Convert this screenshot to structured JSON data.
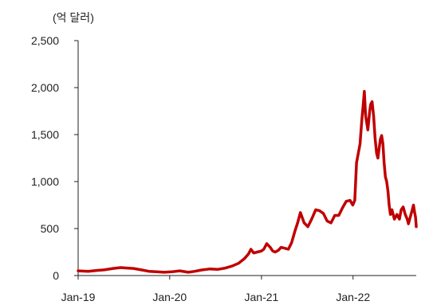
{
  "chart_data": {
    "type": "line",
    "unit_label": "(억 달러)",
    "y_ticks": [
      0,
      500,
      1000,
      1500,
      2000,
      2500
    ],
    "y_tick_labels": [
      "0",
      "500",
      "1,000",
      "1,500",
      "2,000",
      "2,500"
    ],
    "ylim": [
      0,
      2500
    ],
    "x_ticks": [
      {
        "date": "2019-01-01",
        "label": "Jan-19"
      },
      {
        "date": "2020-01-01",
        "label": "Jan-20"
      },
      {
        "date": "2021-01-01",
        "label": "Jan-21"
      },
      {
        "date": "2022-01-01",
        "label": "Jan-22"
      }
    ],
    "xlim": [
      "2019-01-01",
      "2022-09-10"
    ],
    "grid": false,
    "series": [
      {
        "color": "#c00000",
        "points": [
          [
            "2019-01-01",
            50
          ],
          [
            "2019-02-10",
            45
          ],
          [
            "2019-03-20",
            55
          ],
          [
            "2019-04-15",
            60
          ],
          [
            "2019-05-20",
            75
          ],
          [
            "2019-06-20",
            85
          ],
          [
            "2019-07-15",
            80
          ],
          [
            "2019-08-10",
            75
          ],
          [
            "2019-09-10",
            60
          ],
          [
            "2019-10-10",
            45
          ],
          [
            "2019-11-10",
            40
          ],
          [
            "2019-12-10",
            35
          ],
          [
            "2020-01-10",
            40
          ],
          [
            "2020-02-10",
            50
          ],
          [
            "2020-03-15",
            35
          ],
          [
            "2020-04-10",
            45
          ],
          [
            "2020-05-10",
            60
          ],
          [
            "2020-06-10",
            70
          ],
          [
            "2020-07-10",
            65
          ],
          [
            "2020-08-10",
            80
          ],
          [
            "2020-09-05",
            100
          ],
          [
            "2020-10-01",
            130
          ],
          [
            "2020-10-25",
            180
          ],
          [
            "2020-11-10",
            230
          ],
          [
            "2020-11-20",
            280
          ],
          [
            "2020-12-01",
            240
          ],
          [
            "2020-12-15",
            250
          ],
          [
            "2020-12-31",
            260
          ],
          [
            "2021-01-10",
            280
          ],
          [
            "2021-01-22",
            340
          ],
          [
            "2021-02-05",
            300
          ],
          [
            "2021-02-15",
            260
          ],
          [
            "2021-02-25",
            250
          ],
          [
            "2021-03-10",
            270
          ],
          [
            "2021-03-20",
            300
          ],
          [
            "2021-04-05",
            290
          ],
          [
            "2021-04-18",
            280
          ],
          [
            "2021-05-01",
            350
          ],
          [
            "2021-05-15",
            480
          ],
          [
            "2021-05-25",
            560
          ],
          [
            "2021-06-05",
            670
          ],
          [
            "2021-06-20",
            560
          ],
          [
            "2021-07-05",
            520
          ],
          [
            "2021-07-20",
            600
          ],
          [
            "2021-08-05",
            700
          ],
          [
            "2021-08-20",
            690
          ],
          [
            "2021-09-05",
            660
          ],
          [
            "2021-09-20",
            580
          ],
          [
            "2021-10-05",
            560
          ],
          [
            "2021-10-20",
            640
          ],
          [
            "2021-11-05",
            640
          ],
          [
            "2021-11-20",
            720
          ],
          [
            "2021-12-05",
            790
          ],
          [
            "2021-12-20",
            800
          ],
          [
            "2021-12-31",
            750
          ],
          [
            "2022-01-08",
            800
          ],
          [
            "2022-01-15",
            1200
          ],
          [
            "2022-01-22",
            1300
          ],
          [
            "2022-01-29",
            1400
          ],
          [
            "2022-02-05",
            1650
          ],
          [
            "2022-02-10",
            1800
          ],
          [
            "2022-02-15",
            1960
          ],
          [
            "2022-02-20",
            1700
          ],
          [
            "2022-02-25",
            1620
          ],
          [
            "2022-03-01",
            1550
          ],
          [
            "2022-03-08",
            1740
          ],
          [
            "2022-03-12",
            1820
          ],
          [
            "2022-03-18",
            1850
          ],
          [
            "2022-03-24",
            1700
          ],
          [
            "2022-03-30",
            1460
          ],
          [
            "2022-04-05",
            1300
          ],
          [
            "2022-04-10",
            1250
          ],
          [
            "2022-04-15",
            1350
          ],
          [
            "2022-04-20",
            1450
          ],
          [
            "2022-04-25",
            1490
          ],
          [
            "2022-04-30",
            1400
          ],
          [
            "2022-05-05",
            1200
          ],
          [
            "2022-05-10",
            1050
          ],
          [
            "2022-05-15",
            1000
          ],
          [
            "2022-05-20",
            900
          ],
          [
            "2022-05-25",
            750
          ],
          [
            "2022-05-30",
            650
          ],
          [
            "2022-06-05",
            700
          ],
          [
            "2022-06-15",
            600
          ],
          [
            "2022-06-25",
            650
          ],
          [
            "2022-07-05",
            600
          ],
          [
            "2022-07-12",
            700
          ],
          [
            "2022-07-20",
            730
          ],
          [
            "2022-07-28",
            650
          ],
          [
            "2022-08-05",
            600
          ],
          [
            "2022-08-10",
            550
          ],
          [
            "2022-08-15",
            600
          ],
          [
            "2022-08-20",
            650
          ],
          [
            "2022-08-25",
            700
          ],
          [
            "2022-08-30",
            750
          ],
          [
            "2022-09-03",
            680
          ],
          [
            "2022-09-07",
            620
          ],
          [
            "2022-09-10",
            520
          ]
        ]
      }
    ]
  }
}
